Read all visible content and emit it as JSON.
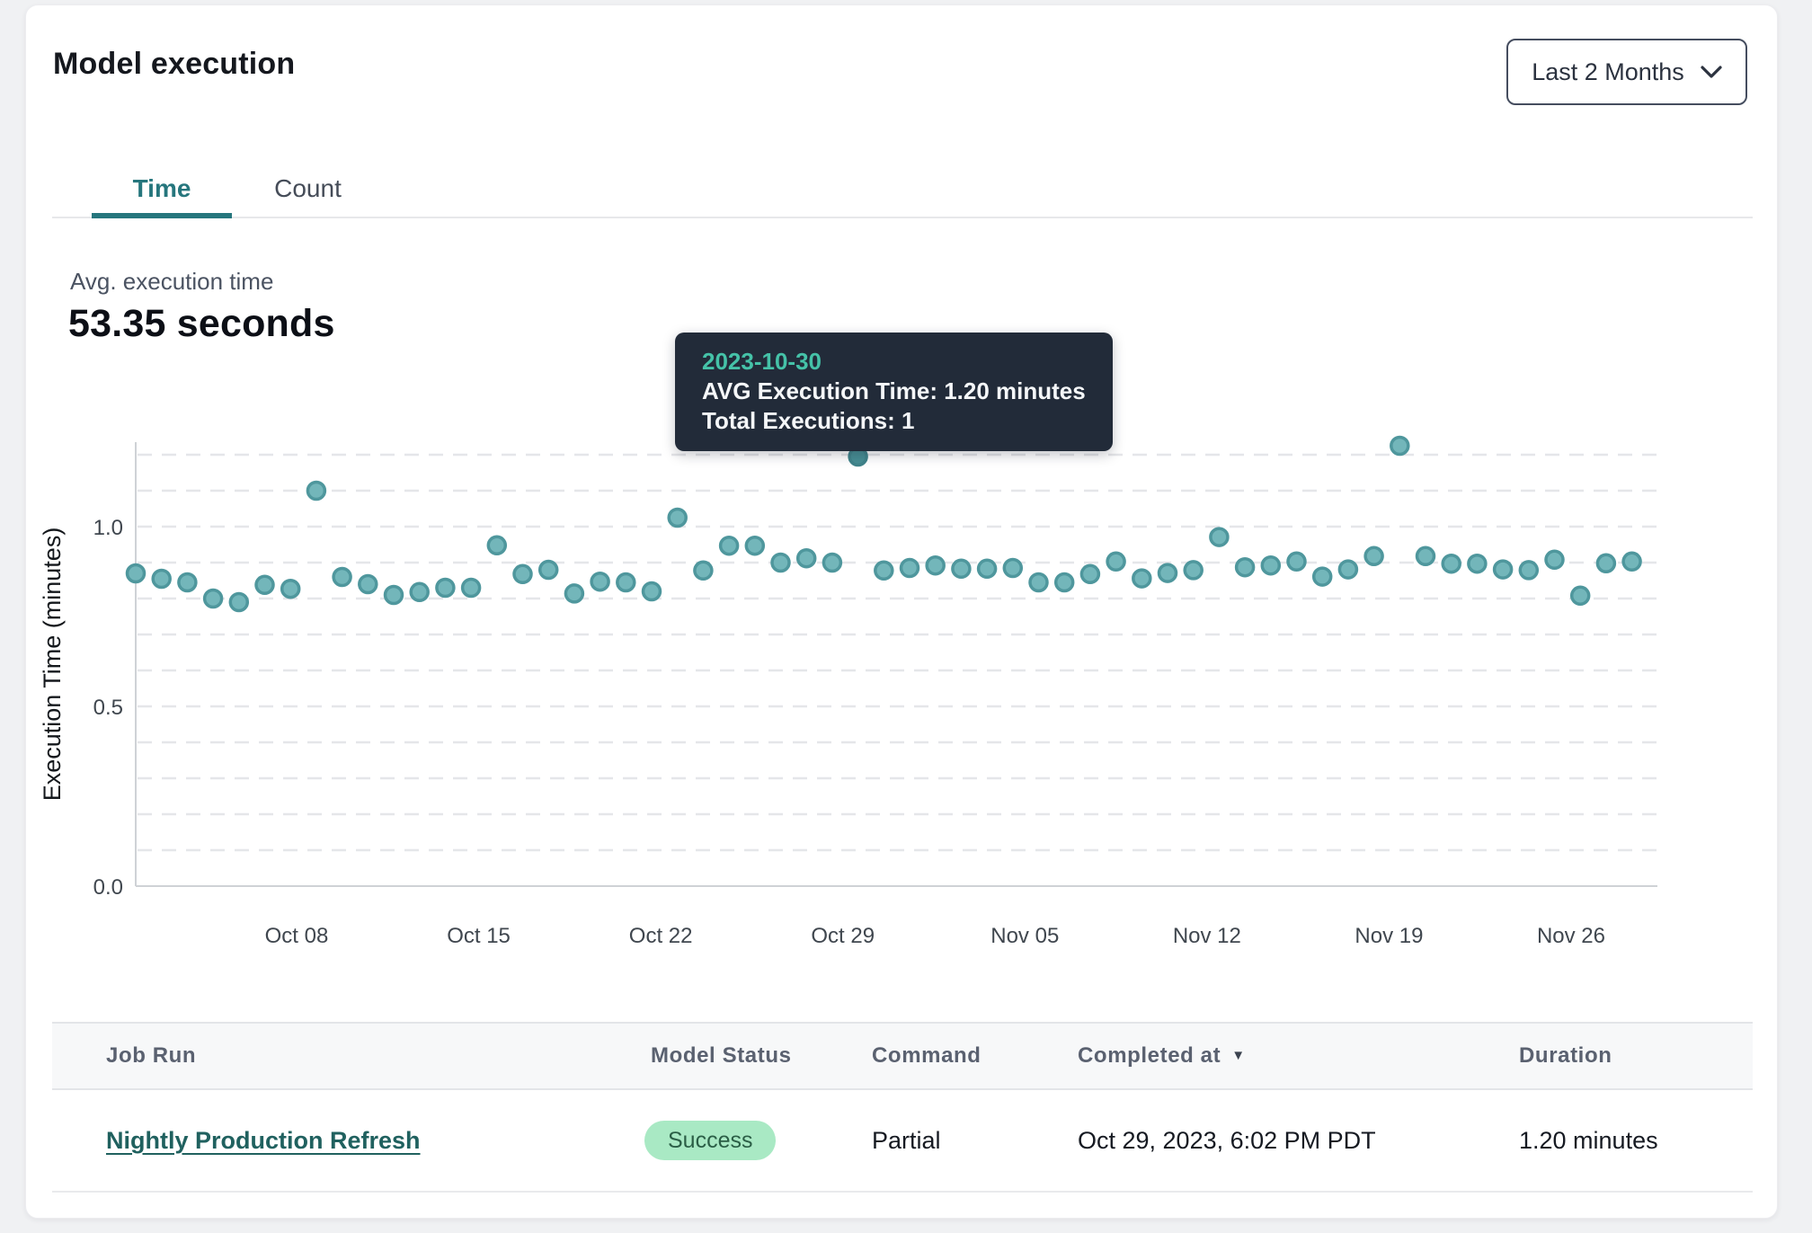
{
  "header": {
    "title": "Model execution",
    "range_selector": {
      "value": "Last 2 Months"
    }
  },
  "tabs": [
    {
      "label": "Time",
      "active": true
    },
    {
      "label": "Count",
      "active": false
    }
  ],
  "metric": {
    "label": "Avg. execution time",
    "value": "53.35 seconds"
  },
  "tooltip": {
    "date": "2023-10-30",
    "avg_line": "AVG Execution Time: 1.20 minutes",
    "total_line": "Total Executions: 1"
  },
  "chart_data": {
    "type": "scatter",
    "title": "",
    "xlabel": "",
    "ylabel": "Execution Time (minutes)",
    "ylim": [
      0,
      1.24
    ],
    "grid": "horizontal-dashed-0.1-steps",
    "y_ticks": [
      {
        "value": 0.0,
        "label": "0.0"
      },
      {
        "value": 0.5,
        "label": "0.5"
      },
      {
        "value": 1.0,
        "label": "1.0"
      }
    ],
    "x_ticks": [
      "Oct 08",
      "Oct 15",
      "Oct 22",
      "Oct 29",
      "Nov 05",
      "Nov 12",
      "Nov 19",
      "Nov 26"
    ],
    "x_start_date": "2023-10-02",
    "x_interval": "daily",
    "values": [
      0.87,
      0.855,
      0.845,
      0.8,
      0.79,
      0.838,
      0.827,
      1.1,
      0.86,
      0.84,
      0.81,
      0.818,
      0.83,
      0.83,
      0.948,
      0.868,
      0.88,
      0.814,
      0.847,
      0.845,
      0.82,
      1.025,
      0.878,
      0.947,
      0.947,
      0.9,
      0.912,
      0.9,
      1.195,
      0.878,
      0.885,
      0.892,
      0.883,
      0.883,
      0.885,
      0.845,
      0.845,
      0.868,
      0.903,
      0.856,
      0.871,
      0.879,
      0.971,
      0.887,
      0.892,
      0.903,
      0.861,
      0.881,
      0.918,
      1.225,
      0.918,
      0.897,
      0.897,
      0.881,
      0.879,
      0.908,
      0.808,
      0.898,
      0.903
    ],
    "highlight_index": 28,
    "highlight_point": {
      "date": "2023-10-30",
      "avg_execution_minutes": 1.2,
      "total_executions": 1
    },
    "colors": {
      "dot_fill": "#73b6ba",
      "dot_stroke": "#4f979d",
      "highlight_fill": "#478e94",
      "highlight_stroke": "#3f838a",
      "grid": "#e5e6e9",
      "axis": "#cfd2d6",
      "tick_text": "#40474f",
      "axis_title": "#14181c"
    },
    "legend": "none"
  },
  "table": {
    "columns": {
      "job_run": "Job Run",
      "model_status": "Model Status",
      "command": "Command",
      "completed_at": "Completed at",
      "duration": "Duration"
    },
    "sort": {
      "column": "Completed at",
      "direction": "desc",
      "icon": "▼"
    },
    "rows": [
      {
        "job_run": "Nightly Production Refresh",
        "model_status": "Success",
        "command": "Partial",
        "completed_at": "Oct 29, 2023, 6:02 PM PDT",
        "duration": "1.20 minutes"
      }
    ]
  },
  "status_colors": {
    "success_bg": "#a9e9c4",
    "success_text": "#2b5e46",
    "accent_teal": "#26767d"
  }
}
